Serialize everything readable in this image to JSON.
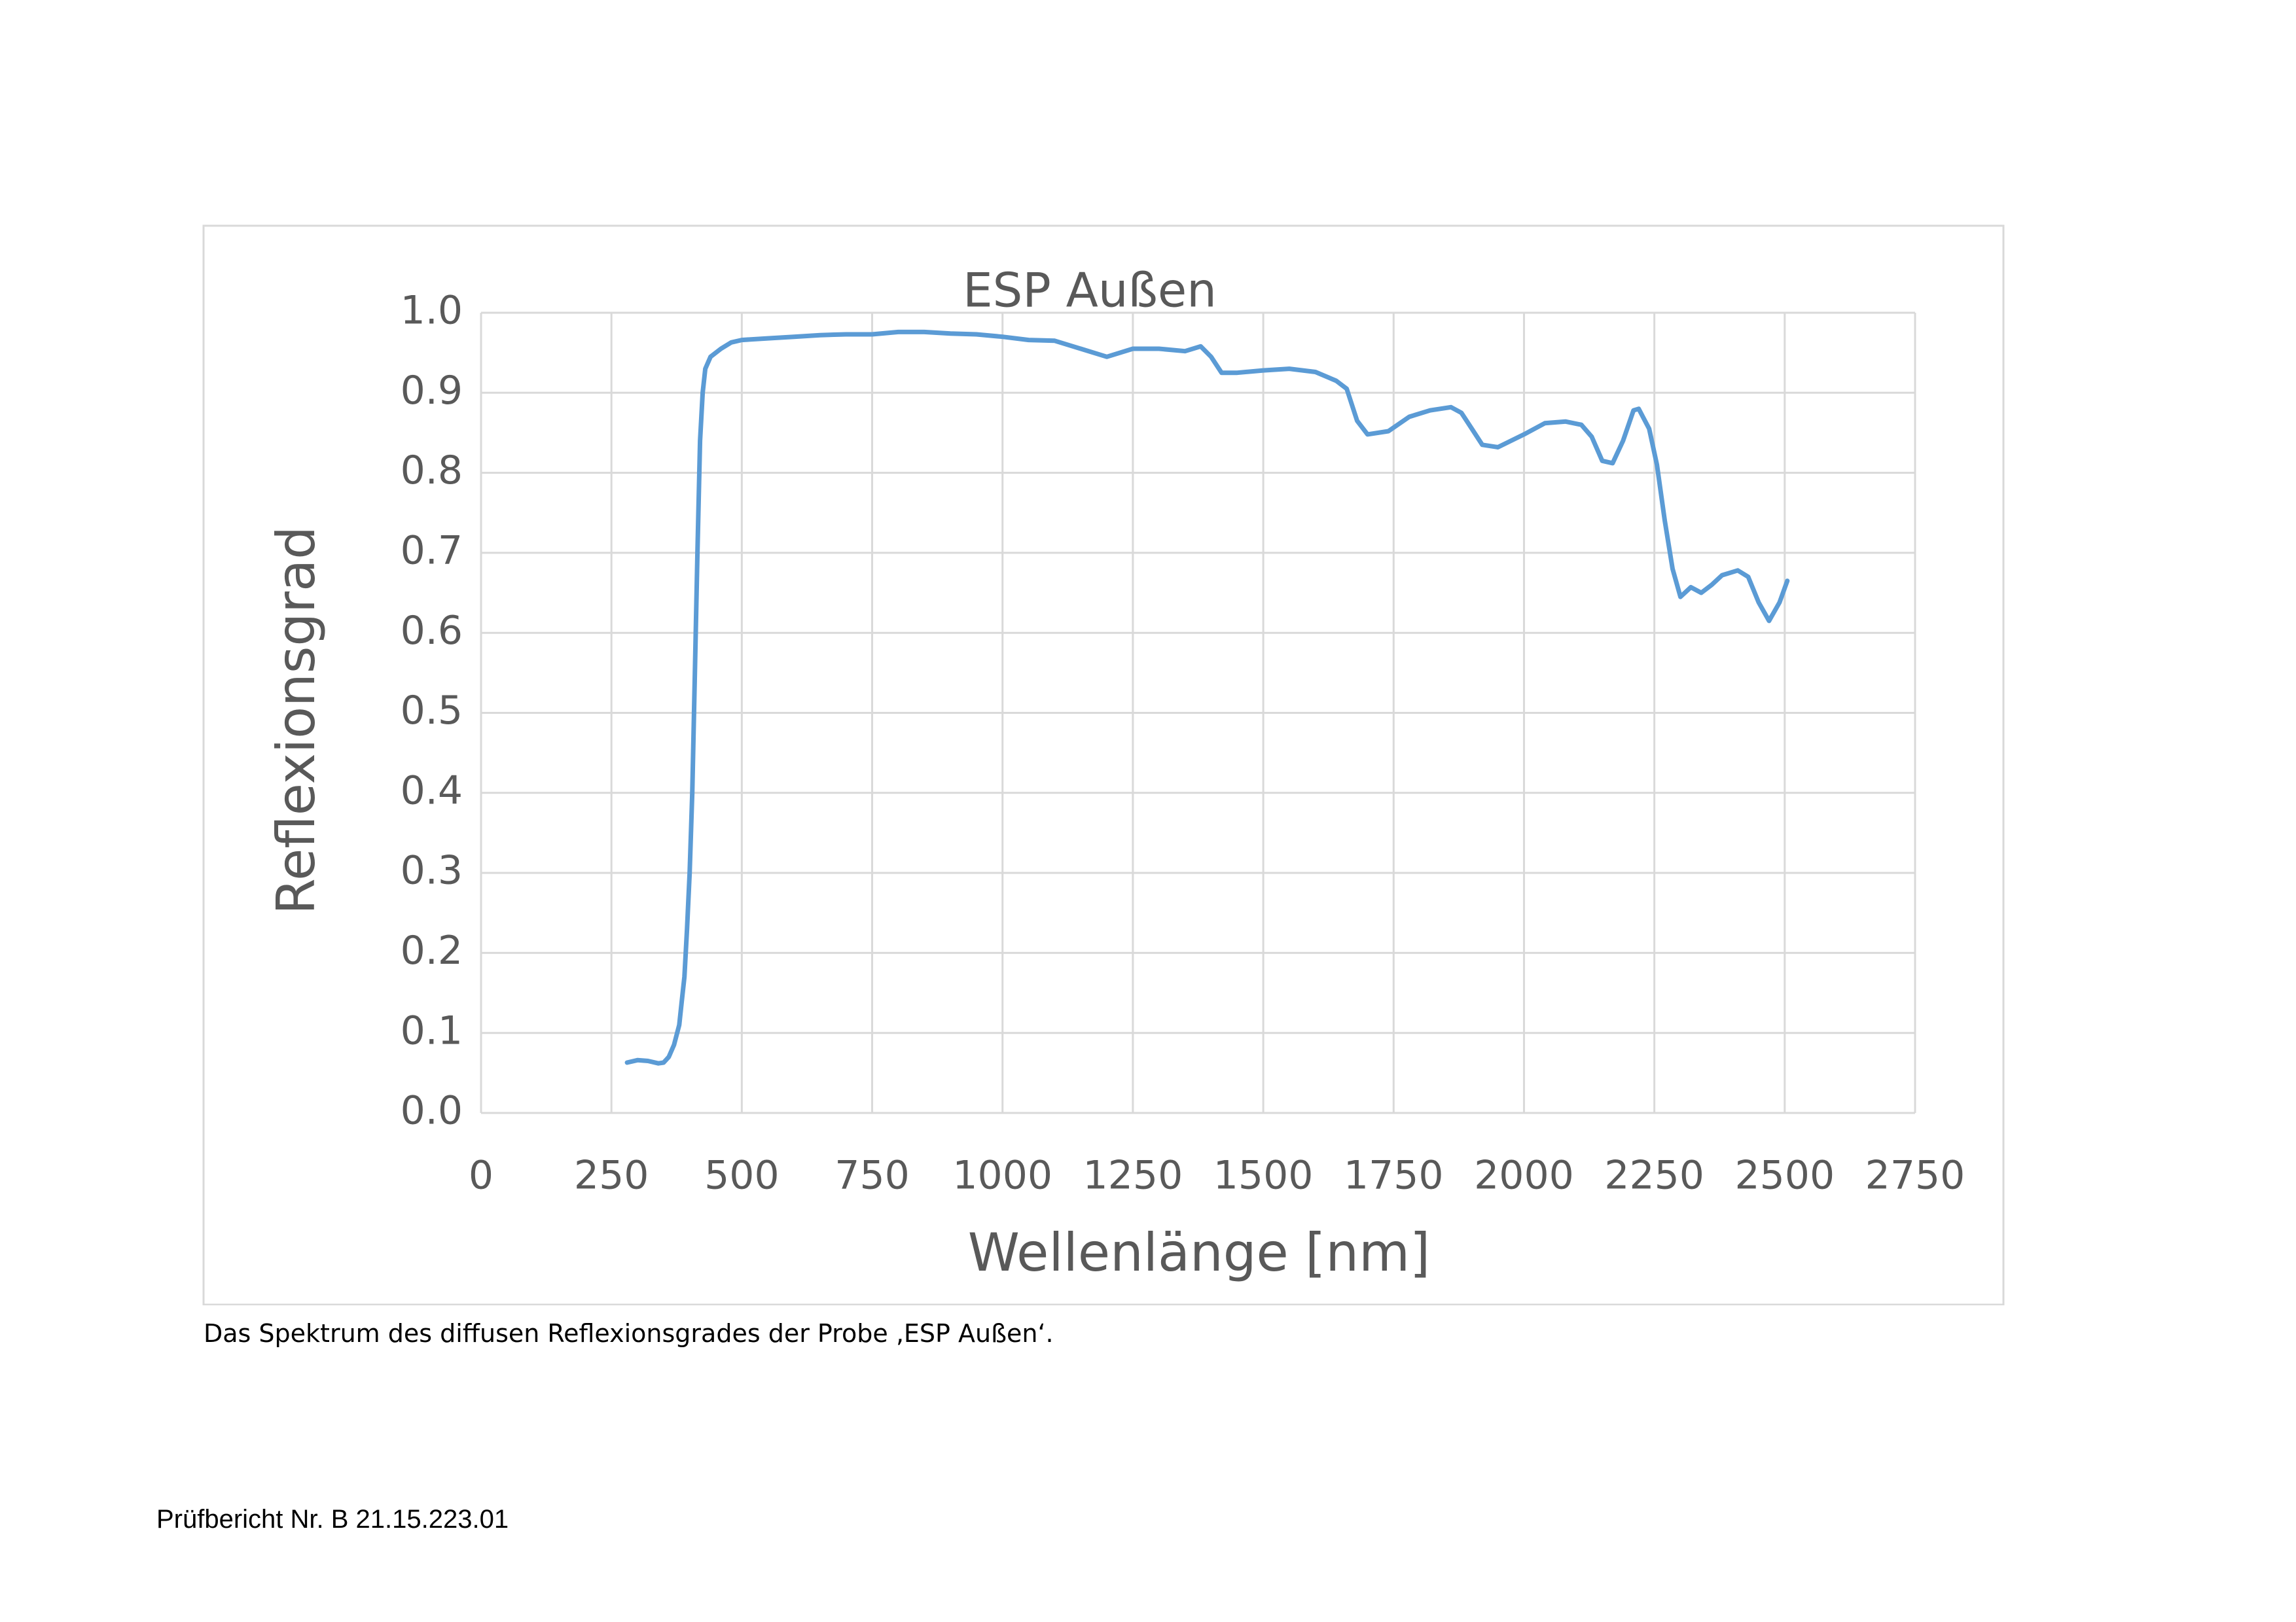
{
  "chart_data": {
    "type": "line",
    "title": "ESP Außen",
    "x_label": "Wellenlänge [nm]",
    "y_label": "Reflexionsgrad",
    "color": "#5b9bd5",
    "grid": true,
    "xlim": [
      0,
      2750
    ],
    "xticks": [
      0,
      250,
      500,
      750,
      1000,
      1250,
      1500,
      1750,
      2000,
      2250,
      2500,
      2750
    ],
    "ylim": [
      0,
      1
    ],
    "yticks": [
      {
        "value": 0,
        "label": "0.0"
      },
      0.1,
      0.2,
      0.3,
      0.4,
      0.5,
      0.6,
      0.7,
      0.8,
      0.9,
      {
        "value": 1,
        "label": "1.0"
      }
    ],
    "x": [
      280,
      300,
      320,
      340,
      350,
      360,
      370,
      380,
      385,
      390,
      395,
      400,
      405,
      410,
      415,
      420,
      425,
      430,
      440,
      460,
      480,
      500,
      550,
      600,
      650,
      700,
      750,
      800,
      850,
      900,
      950,
      1000,
      1050,
      1100,
      1150,
      1200,
      1250,
      1300,
      1350,
      1380,
      1400,
      1420,
      1450,
      1500,
      1550,
      1600,
      1640,
      1660,
      1680,
      1700,
      1740,
      1780,
      1820,
      1860,
      1880,
      1900,
      1920,
      1950,
      2000,
      2040,
      2080,
      2110,
      2130,
      2150,
      2170,
      2190,
      2210,
      2220,
      2240,
      2255,
      2270,
      2285,
      2300,
      2320,
      2340,
      2360,
      2380,
      2410,
      2430,
      2450,
      2470,
      2490,
      2505
    ],
    "values": [
      0.063,
      0.066,
      0.065,
      0.062,
      0.063,
      0.07,
      0.085,
      0.11,
      0.14,
      0.17,
      0.23,
      0.3,
      0.4,
      0.55,
      0.7,
      0.84,
      0.9,
      0.93,
      0.945,
      0.955,
      0.963,
      0.966,
      0.968,
      0.97,
      0.972,
      0.973,
      0.973,
      0.976,
      0.976,
      0.974,
      0.973,
      0.97,
      0.966,
      0.965,
      0.955,
      0.945,
      0.955,
      0.955,
      0.952,
      0.958,
      0.945,
      0.925,
      0.925,
      0.928,
      0.93,
      0.926,
      0.915,
      0.905,
      0.865,
      0.848,
      0.852,
      0.87,
      0.878,
      0.882,
      0.875,
      0.855,
      0.835,
      0.832,
      0.848,
      0.862,
      0.864,
      0.86,
      0.845,
      0.815,
      0.812,
      0.84,
      0.878,
      0.88,
      0.855,
      0.81,
      0.74,
      0.68,
      0.645,
      0.657,
      0.65,
      0.66,
      0.672,
      0.678,
      0.67,
      0.638,
      0.615,
      0.638,
      0.665
    ]
  },
  "caption": "Das Spektrum des diffusen Reflexionsgrades der Probe ‚ESP Außen‘.",
  "footer": "Prüfbericht Nr. B 21.15.223.01"
}
